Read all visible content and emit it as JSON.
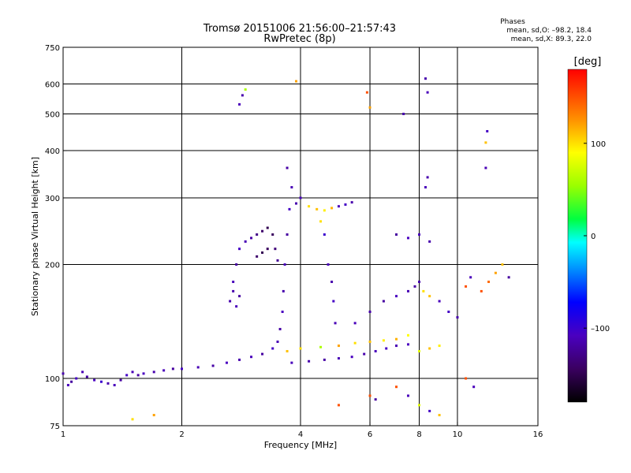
{
  "title": {
    "line1": "Tromsø 20151006 21:56:00–21:57:43",
    "line2": "RwPretec (8p)"
  },
  "stats": {
    "heading": "Phases",
    "line1": "mean, sd,O: –98.2, 18.4",
    "line2": "mean, sd,X:  89.3, 22.0"
  },
  "colorbar": {
    "unit": "[deg]",
    "ticks": [
      {
        "value": 100,
        "label": "100"
      },
      {
        "value": 0,
        "label": "0"
      },
      {
        "value": -100,
        "label": "–100"
      }
    ],
    "range": [
      -180,
      180
    ]
  },
  "chart_data": {
    "type": "scatter",
    "title": "Tromsø 20151006 21:56:00–21:57:43",
    "subtitle": "RwPretec (8p)",
    "xlabel": "Frequency [MHz]",
    "ylabel": "Stationary phase Virtual Height [km]",
    "x_scale": "log",
    "y_scale": "log",
    "xlim": [
      1,
      16
    ],
    "ylim": [
      75,
      750
    ],
    "x_ticks": [
      {
        "value": 1,
        "label": "1"
      },
      {
        "value": 2,
        "label": "2"
      },
      {
        "value": 4,
        "label": "4"
      },
      {
        "value": 6,
        "label": "6"
      },
      {
        "value": 8,
        "label": "8"
      },
      {
        "value": 10,
        "label": "10"
      },
      {
        "value": 16,
        "label": "16"
      }
    ],
    "y_ticks": [
      {
        "value": 75,
        "label": "75"
      },
      {
        "value": 100,
        "label": "100"
      },
      {
        "value": 200,
        "label": "200"
      },
      {
        "value": 300,
        "label": "300"
      },
      {
        "value": 400,
        "label": "400"
      },
      {
        "value": 500,
        "label": "500"
      },
      {
        "value": 600,
        "label": "600"
      },
      {
        "value": 750,
        "label": "750"
      }
    ],
    "x_grid": [
      2,
      4,
      6,
      8,
      10
    ],
    "y_grid": [
      100,
      200,
      300,
      400,
      500,
      600
    ],
    "grid": true,
    "color_scale": "rainbow (phase, deg)",
    "series": [
      {
        "name": "",
        "points": [
          [
            1.0,
            103,
            -115
          ],
          [
            1.03,
            96,
            -110
          ],
          [
            1.05,
            98,
            -120
          ],
          [
            1.08,
            100,
            -105
          ],
          [
            1.12,
            104,
            -112
          ],
          [
            1.15,
            101,
            -118
          ],
          [
            1.2,
            99,
            -108
          ],
          [
            1.25,
            98,
            -100
          ],
          [
            1.3,
            97,
            -115
          ],
          [
            1.35,
            96,
            -110
          ],
          [
            1.4,
            99,
            -120
          ],
          [
            1.45,
            102,
            -105
          ],
          [
            1.5,
            104,
            -112
          ],
          [
            1.55,
            102,
            -118
          ],
          [
            1.6,
            103,
            -108
          ],
          [
            1.7,
            104,
            -115
          ],
          [
            1.8,
            105,
            -110
          ],
          [
            1.9,
            106,
            -120
          ],
          [
            2.0,
            106,
            -105
          ],
          [
            2.2,
            107,
            -112
          ],
          [
            2.4,
            108,
            -118
          ],
          [
            2.6,
            110,
            -108
          ],
          [
            2.8,
            112,
            -115
          ],
          [
            3.0,
            114,
            -110
          ],
          [
            3.2,
            116,
            -120
          ],
          [
            3.4,
            120,
            -105
          ],
          [
            3.5,
            125,
            -112
          ],
          [
            3.55,
            135,
            -118
          ],
          [
            3.6,
            150,
            -108
          ],
          [
            3.62,
            170,
            -115
          ],
          [
            3.65,
            200,
            -110
          ],
          [
            3.7,
            240,
            -120
          ],
          [
            3.75,
            280,
            -105
          ],
          [
            3.8,
            320,
            -112
          ],
          [
            3.7,
            360,
            -118
          ]
        ]
      },
      {
        "name": "",
        "points": [
          [
            2.65,
            160,
            -115
          ],
          [
            2.7,
            180,
            -110
          ],
          [
            2.75,
            200,
            -120
          ],
          [
            2.8,
            220,
            -105
          ],
          [
            2.9,
            230,
            -112
          ],
          [
            3.0,
            235,
            -118
          ],
          [
            3.1,
            240,
            -130
          ],
          [
            3.2,
            245,
            -140
          ],
          [
            3.3,
            250,
            -150
          ],
          [
            3.4,
            240,
            -145
          ],
          [
            3.45,
            220,
            -135
          ],
          [
            3.5,
            205,
            -125
          ],
          [
            3.1,
            210,
            -140
          ],
          [
            3.2,
            215,
            -150
          ],
          [
            3.3,
            220,
            -145
          ],
          [
            2.7,
            170,
            -115
          ],
          [
            2.75,
            155,
            -110
          ],
          [
            2.8,
            165,
            -120
          ]
        ]
      },
      {
        "name": "",
        "points": [
          [
            3.8,
            110,
            -110
          ],
          [
            4.2,
            111,
            -115
          ],
          [
            4.6,
            112,
            -118
          ],
          [
            5.0,
            113,
            -112
          ],
          [
            5.4,
            114,
            -108
          ],
          [
            5.8,
            116,
            -115
          ],
          [
            6.2,
            118,
            -110
          ],
          [
            6.6,
            120,
            -105
          ],
          [
            7.0,
            122,
            -112
          ],
          [
            7.5,
            123,
            -108
          ]
        ]
      },
      {
        "name": "",
        "points": [
          [
            3.7,
            118,
            110
          ],
          [
            4.0,
            120,
            100
          ],
          [
            4.5,
            121,
            60
          ],
          [
            5.0,
            122,
            120
          ],
          [
            5.5,
            124,
            100
          ],
          [
            6.0,
            125,
            110
          ],
          [
            6.5,
            126,
            95
          ],
          [
            7.0,
            127,
            115
          ],
          [
            7.5,
            130,
            90
          ],
          [
            8.0,
            118,
            80
          ],
          [
            8.5,
            120,
            110
          ],
          [
            9.0,
            122,
            95
          ]
        ]
      },
      {
        "name": "",
        "points": [
          [
            3.9,
            290,
            -115
          ],
          [
            4.0,
            300,
            -110
          ],
          [
            4.2,
            285,
            100
          ],
          [
            4.4,
            280,
            110
          ],
          [
            4.6,
            278,
            95
          ],
          [
            4.8,
            282,
            115
          ],
          [
            5.0,
            285,
            -110
          ],
          [
            5.2,
            288,
            -105
          ],
          [
            5.4,
            292,
            -115
          ],
          [
            4.5,
            260,
            100
          ],
          [
            4.6,
            240,
            -100
          ],
          [
            4.7,
            200,
            -110
          ],
          [
            4.8,
            180,
            -115
          ],
          [
            4.85,
            160,
            -105
          ],
          [
            4.9,
            140,
            -112
          ]
        ]
      },
      {
        "name": "",
        "points": [
          [
            5.5,
            140,
            -110
          ],
          [
            6.0,
            150,
            -115
          ],
          [
            6.5,
            160,
            -120
          ],
          [
            7.0,
            165,
            -108
          ],
          [
            7.5,
            170,
            -112
          ],
          [
            7.8,
            175,
            -118
          ],
          [
            8.0,
            180,
            -115
          ],
          [
            8.2,
            170,
            100
          ],
          [
            8.5,
            165,
            110
          ],
          [
            9.0,
            160,
            -110
          ],
          [
            9.5,
            150,
            -105
          ],
          [
            10.0,
            145,
            -115
          ],
          [
            8.0,
            240,
            -110
          ],
          [
            8.5,
            230,
            -115
          ],
          [
            7.0,
            240,
            -120
          ],
          [
            7.5,
            235,
            -108
          ]
        ]
      },
      {
        "name": "",
        "points": [
          [
            2.8,
            530,
            -110
          ],
          [
            2.85,
            560,
            -115
          ],
          [
            2.9,
            580,
            60
          ],
          [
            5.9,
            570,
            150
          ],
          [
            6.0,
            520,
            120
          ],
          [
            8.3,
            620,
            -115
          ],
          [
            8.4,
            570,
            -110
          ],
          [
            11.9,
            450,
            -105
          ],
          [
            11.8,
            420,
            110
          ],
          [
            8.4,
            340,
            -115
          ],
          [
            8.3,
            320,
            -110
          ],
          [
            11.8,
            360,
            -112
          ],
          [
            3.9,
            610,
            120
          ],
          [
            7.3,
            500,
            -115
          ]
        ]
      },
      {
        "name": "",
        "points": [
          [
            7.0,
            95,
            150
          ],
          [
            7.5,
            90,
            -110
          ],
          [
            8.0,
            85,
            80
          ],
          [
            8.5,
            82,
            -105
          ],
          [
            9.0,
            80,
            110
          ],
          [
            6.0,
            90,
            150
          ],
          [
            6.2,
            88,
            -120
          ],
          [
            10.5,
            100,
            150
          ],
          [
            11.0,
            95,
            -110
          ],
          [
            5.0,
            85,
            150
          ],
          [
            1.7,
            80,
            120
          ],
          [
            1.5,
            78,
            100
          ]
        ]
      },
      {
        "name": "",
        "points": [
          [
            11.5,
            170,
            150
          ],
          [
            12.0,
            180,
            140
          ],
          [
            12.5,
            190,
            120
          ],
          [
            13.0,
            200,
            110
          ],
          [
            10.5,
            175,
            150
          ],
          [
            10.8,
            185,
            -110
          ],
          [
            13.5,
            185,
            -120
          ]
        ]
      }
    ]
  }
}
